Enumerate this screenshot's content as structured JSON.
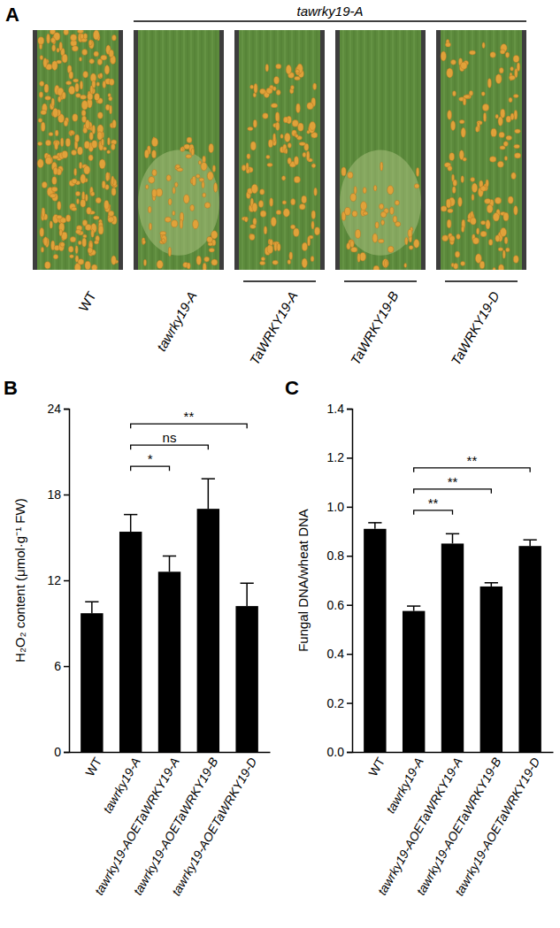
{
  "panel_labels": [
    "A",
    "B",
    "C"
  ],
  "leaf_panel": {
    "group_label": "tawrky19-A",
    "labels": [
      "WT",
      "tawrky19-A",
      "TaWRKY19-A",
      "TaWRKY19-B",
      "TaWRKY19-D"
    ]
  },
  "chart_data": [
    {
      "type": "bar",
      "ylabel": "H₂O₂ content (μmol·g⁻¹ FW)",
      "categories": [
        "WT",
        "tawrky19-A",
        "tawrky19-AOETaWRKY19-A",
        "tawrky19-AOETaWRKY19-B",
        "tawrky19-AOETaWRKY19-D"
      ],
      "values": [
        9.7,
        15.4,
        12.6,
        17.0,
        10.2
      ],
      "errors": [
        0.8,
        1.2,
        1.1,
        2.1,
        1.6
      ],
      "color": "#000000",
      "ylim": [
        0,
        24
      ],
      "yticks": [
        0,
        6,
        12,
        18,
        24
      ],
      "annotations": [
        {
          "text": "*",
          "from": 1,
          "to": 2
        },
        {
          "text": "ns",
          "from": 1,
          "to": 3
        },
        {
          "text": "**",
          "from": 1,
          "to": 4
        }
      ]
    },
    {
      "type": "bar",
      "ylabel": "Fungal DNA/wheat DNA",
      "categories": [
        "WT",
        "tawrky19-A",
        "tawrky19-AOETaWRKY19-A",
        "tawrky19-AOETaWRKY19-B",
        "tawrky19-AOETaWRKY19-D"
      ],
      "values": [
        0.91,
        0.575,
        0.85,
        0.675,
        0.84
      ],
      "errors": [
        0.025,
        0.02,
        0.04,
        0.015,
        0.025
      ],
      "color": "#000000",
      "ylim": [
        0,
        1.4
      ],
      "yticks": [
        {
          "value": 0,
          "label": "0.0"
        },
        0.2,
        0.4,
        0.6,
        0.8,
        {
          "value": 1,
          "label": "1.0"
        },
        1.2,
        1.4
      ],
      "annotations": [
        {
          "text": "**",
          "from": 1,
          "to": 2
        },
        {
          "text": "**",
          "from": 1,
          "to": 3
        },
        {
          "text": "**",
          "from": 1,
          "to": 4
        }
      ]
    }
  ]
}
